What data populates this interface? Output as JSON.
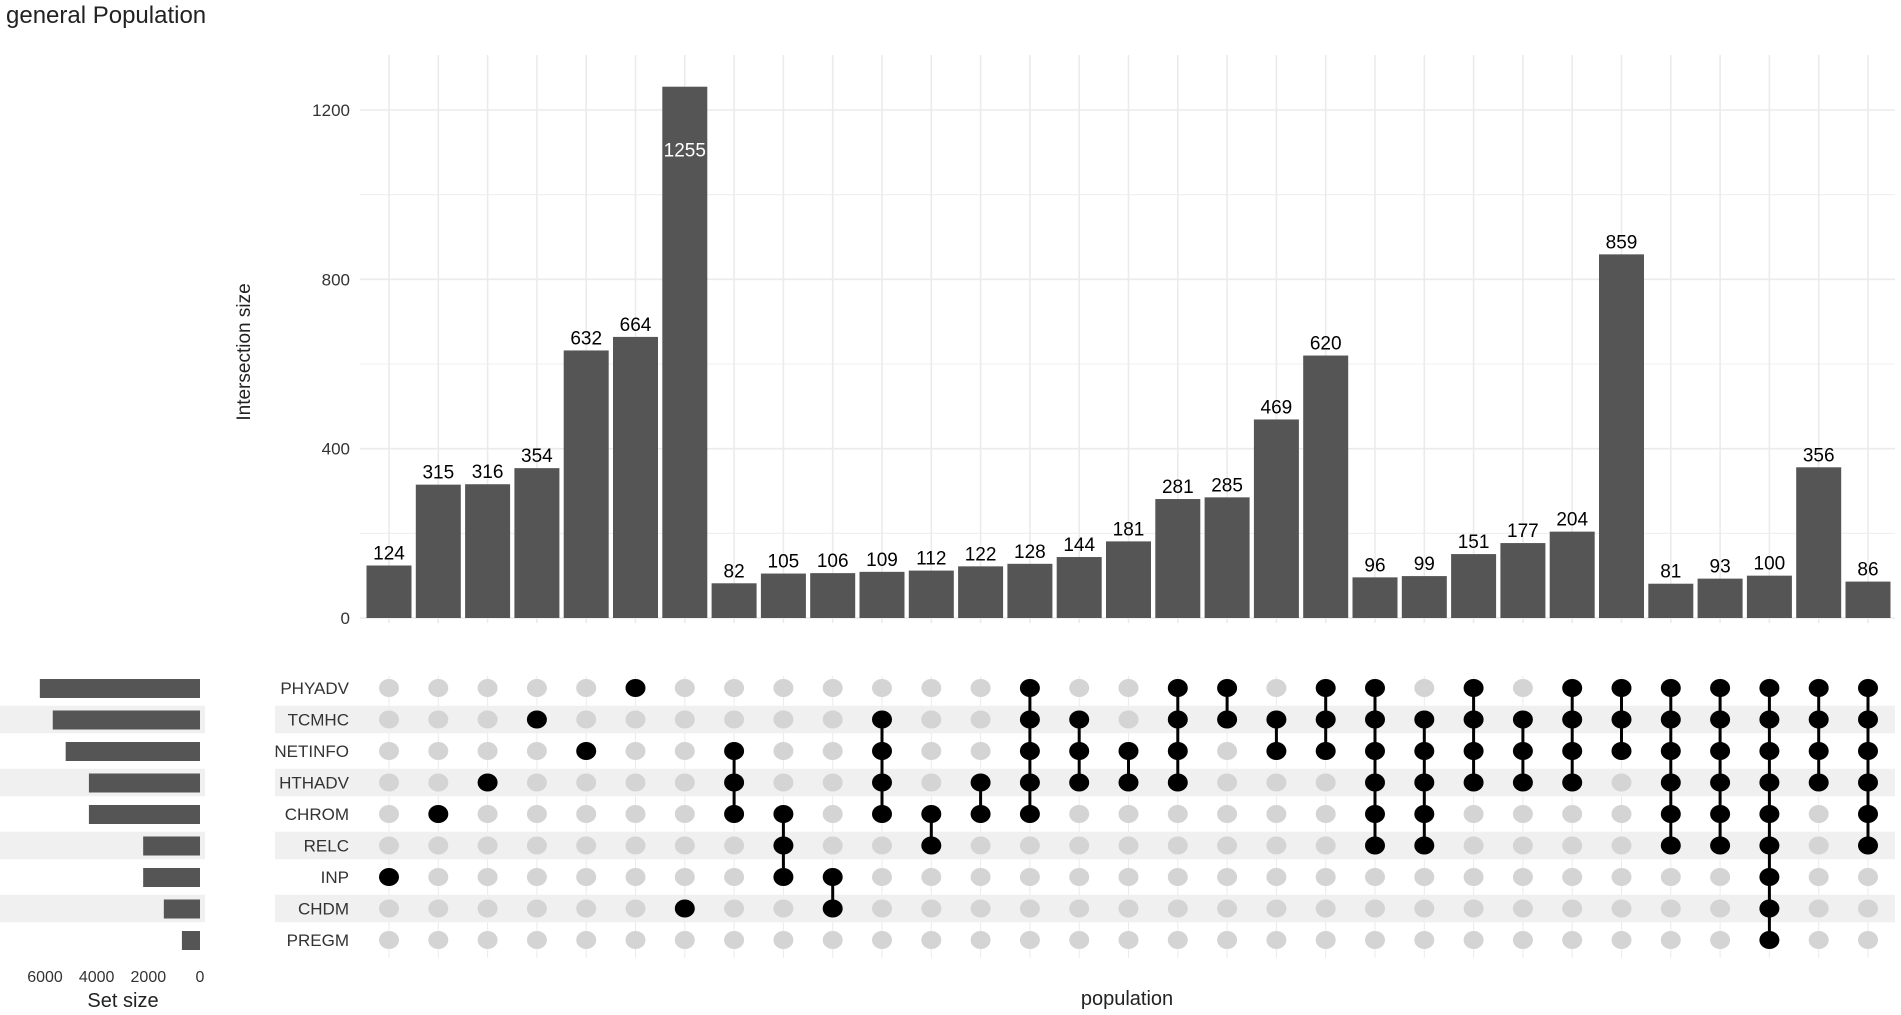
{
  "chart_data": {
    "type": "bar",
    "title": "general Population",
    "ylabel": "Intersection size",
    "xlabel": "population",
    "ylim": [
      0,
      1255
    ],
    "yticks": [
      0,
      400,
      800,
      1200
    ],
    "sets": [
      "PHYADV",
      "TCMHC",
      "NETINFO",
      "HTHADV",
      "CHROM",
      "RELC",
      "INP",
      "CHDM",
      "PREGM"
    ],
    "set_size": {
      "label": "Set size",
      "xticks": [
        "6000",
        "4000",
        "2000",
        "0"
      ],
      "values": [
        6200,
        5700,
        5200,
        4300,
        4300,
        2200,
        2200,
        1400,
        700
      ]
    },
    "intersections": [
      {
        "value": 124,
        "label": "124",
        "sets": [
          "INP"
        ]
      },
      {
        "value": 315,
        "label": "315",
        "sets": [
          "CHROM"
        ]
      },
      {
        "value": 316,
        "label": "316",
        "sets": [
          "HTHADV"
        ]
      },
      {
        "value": 354,
        "label": "354",
        "sets": [
          "TCMHC"
        ]
      },
      {
        "value": 632,
        "label": "632",
        "sets": [
          "NETINFO"
        ]
      },
      {
        "value": 664,
        "label": "664",
        "sets": [
          "PHYADV"
        ]
      },
      {
        "value": 1255,
        "label": "1255",
        "sets": [
          "CHDM"
        ]
      },
      {
        "value": 82,
        "label": "82",
        "sets": [
          "NETINFO",
          "HTHADV",
          "CHROM"
        ]
      },
      {
        "value": 105,
        "label": "105",
        "sets": [
          "CHROM",
          "RELC",
          "INP"
        ]
      },
      {
        "value": 106,
        "label": "106",
        "sets": [
          "INP",
          "CHDM"
        ]
      },
      {
        "value": 109,
        "label": "109",
        "sets": [
          "TCMHC",
          "NETINFO",
          "HTHADV",
          "CHROM"
        ]
      },
      {
        "value": 112,
        "label": "112",
        "sets": [
          "CHROM",
          "RELC"
        ]
      },
      {
        "value": 122,
        "label": "122",
        "sets": [
          "HTHADV",
          "CHROM"
        ]
      },
      {
        "value": 128,
        "label": "128",
        "sets": [
          "PHYADV",
          "TCMHC",
          "NETINFO",
          "HTHADV",
          "CHROM"
        ]
      },
      {
        "value": 144,
        "label": "144",
        "sets": [
          "TCMHC",
          "NETINFO",
          "HTHADV"
        ]
      },
      {
        "value": 181,
        "label": "181",
        "sets": [
          "NETINFO",
          "HTHADV"
        ]
      },
      {
        "value": 281,
        "label": "281",
        "sets": [
          "PHYADV",
          "TCMHC",
          "NETINFO",
          "HTHADV"
        ]
      },
      {
        "value": 285,
        "label": "285",
        "sets": [
          "PHYADV",
          "TCMHC"
        ]
      },
      {
        "value": 469,
        "label": "469",
        "sets": [
          "TCMHC",
          "NETINFO"
        ]
      },
      {
        "value": 620,
        "label": "620",
        "sets": [
          "PHYADV",
          "TCMHC",
          "NETINFO"
        ]
      },
      {
        "value": 96,
        "label": "96",
        "sets": [
          "PHYADV",
          "TCMHC",
          "NETINFO",
          "HTHADV",
          "CHROM",
          "RELC"
        ]
      },
      {
        "value": 99,
        "label": "99",
        "sets": [
          "TCMHC",
          "NETINFO",
          "HTHADV",
          "CHROM",
          "RELC"
        ]
      },
      {
        "value": 151,
        "label": "151",
        "sets": [
          "PHYADV",
          "TCMHC",
          "NETINFO",
          "HTHADV"
        ]
      },
      {
        "value": 177,
        "label": "177",
        "sets": [
          "TCMHC",
          "NETINFO",
          "HTHADV"
        ]
      },
      {
        "value": 204,
        "label": "204",
        "sets": [
          "PHYADV",
          "TCMHC",
          "NETINFO",
          "HTHADV"
        ]
      },
      {
        "value": 859,
        "label": "859",
        "sets": [
          "PHYADV",
          "TCMHC",
          "NETINFO"
        ]
      },
      {
        "value": 81,
        "label": "81",
        "sets": [
          "PHYADV",
          "TCMHC",
          "NETINFO",
          "HTHADV",
          "CHROM",
          "RELC"
        ]
      },
      {
        "value": 93,
        "label": "93",
        "sets": [
          "PHYADV",
          "TCMHC",
          "NETINFO",
          "HTHADV",
          "CHROM",
          "RELC"
        ]
      },
      {
        "value": 100,
        "label": "100",
        "sets": [
          "PHYADV",
          "TCMHC",
          "NETINFO",
          "HTHADV",
          "CHROM",
          "RELC",
          "INP",
          "CHDM",
          "PREGM"
        ]
      },
      {
        "value": 356,
        "label": "356",
        "sets": [
          "PHYADV",
          "TCMHC",
          "NETINFO",
          "HTHADV"
        ]
      },
      {
        "value": 86,
        "label": "86",
        "sets": [
          "PHYADV",
          "TCMHC",
          "NETINFO",
          "HTHADV",
          "CHROM",
          "RELC"
        ]
      }
    ],
    "grid": true,
    "colors": {
      "bar": "#555555",
      "dot_active": "#000000",
      "dot_inactive": "#d4d4d4",
      "stripe": "#f0f0f0",
      "grid": "#ebebeb",
      "label": "#000000"
    }
  }
}
